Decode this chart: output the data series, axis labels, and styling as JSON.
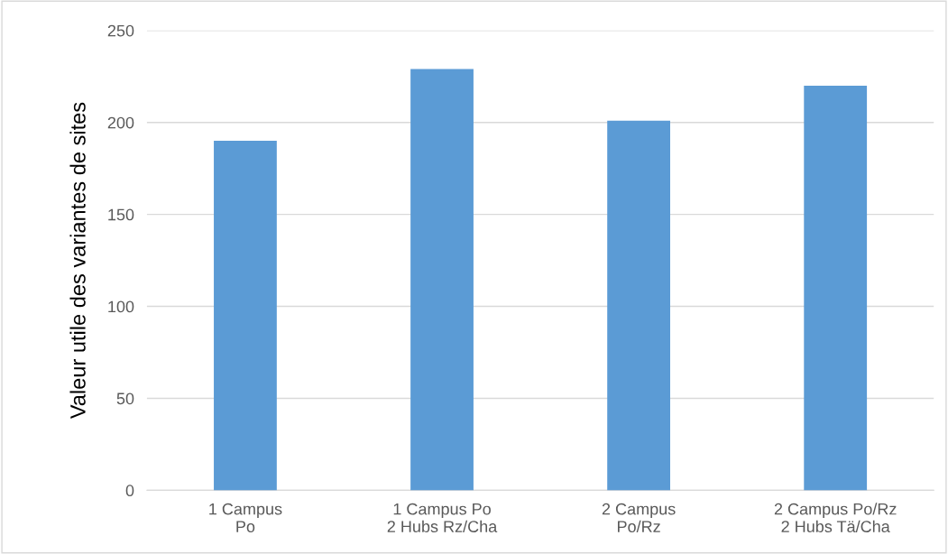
{
  "chart_data": {
    "type": "bar",
    "ylabel": "Valeur utile des variantes de sites",
    "categories": [
      "1 Campus\nPo",
      "1 Campus Po\n2 Hubs Rz/Cha",
      "2 Campus\nPo/Rz",
      "2 Campus Po/Rz\n2 Hubs Tä/Cha"
    ],
    "values": [
      190,
      229,
      201,
      220
    ],
    "color": "#5b9bd5",
    "ylim": [
      0,
      250
    ],
    "yticks": [
      0,
      50,
      100,
      150,
      200,
      250
    ],
    "grid": "y"
  }
}
